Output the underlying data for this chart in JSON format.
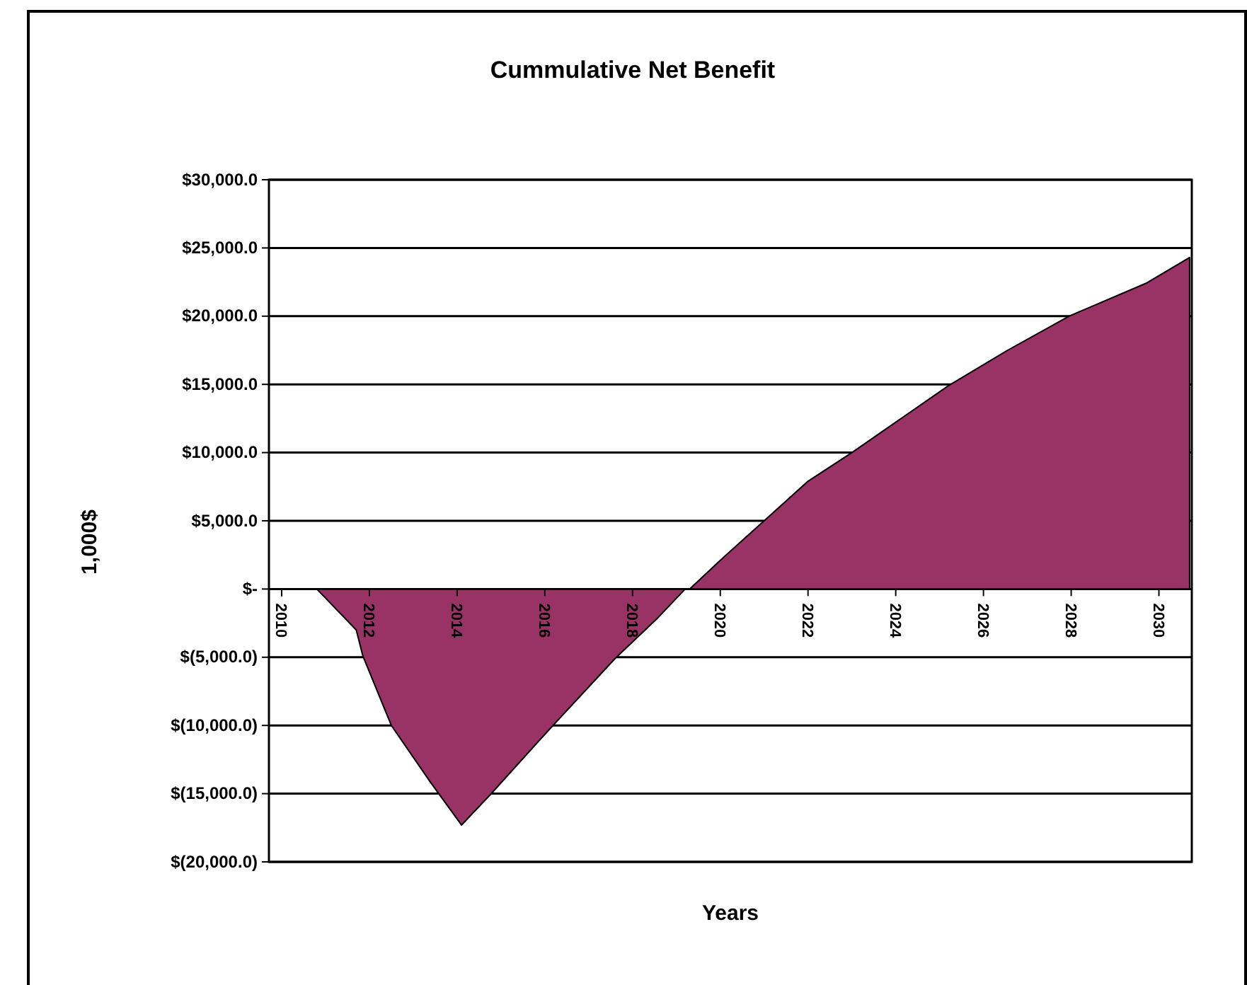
{
  "chart_data": {
    "type": "area",
    "title": "Cummulative Net Benefit",
    "xlabel": "Years",
    "ylabel": "1,000$",
    "x": [
      2010.4,
      2010.8,
      2011.7,
      2011.85,
      2012.5,
      2013.4,
      2014.1,
      2014.75,
      2016.1,
      2017.6,
      2018.55,
      2019.2,
      2019.3,
      2020.1,
      2021.0,
      2022.0,
      2023.0,
      2025.2,
      2026.55,
      2027.95,
      2029.7,
      2030.7
    ],
    "series": [
      {
        "color": "#993366",
        "values": [
          0,
          0,
          -3000,
          -4900,
          -10000,
          -14200,
          -17300,
          -15100,
          -10300,
          -5100,
          -2200,
          0,
          0,
          2400,
          5000,
          7900,
          10000,
          14900,
          17500,
          20000,
          22400,
          24300
        ]
      }
    ],
    "xlim": [
      2010,
      2030.75
    ],
    "xticks": [
      2010,
      2012,
      2014,
      2016,
      2018,
      2020,
      2022,
      2024,
      2026,
      2028,
      2030
    ],
    "ylim": [
      -20000,
      30000
    ],
    "yticks": [
      {
        "value": -20000,
        "label": "$(20,000.0)"
      },
      {
        "value": -15000,
        "label": "$(15,000.0)"
      },
      {
        "value": -10000,
        "label": "$(10,000.0)"
      },
      {
        "value": -5000,
        "label": "$(5,000.0)"
      },
      {
        "value": 0,
        "label": "$-"
      },
      {
        "value": 5000,
        "label": "$5,000.0"
      },
      {
        "value": 10000,
        "label": "$10,000.0"
      },
      {
        "value": 15000,
        "label": "$15,000.0"
      },
      {
        "value": 20000,
        "label": "$20,000.0"
      },
      {
        "value": 25000,
        "label": "$25,000.0"
      },
      {
        "value": 30000,
        "label": "$30,000.0"
      }
    ],
    "grid": "y"
  }
}
